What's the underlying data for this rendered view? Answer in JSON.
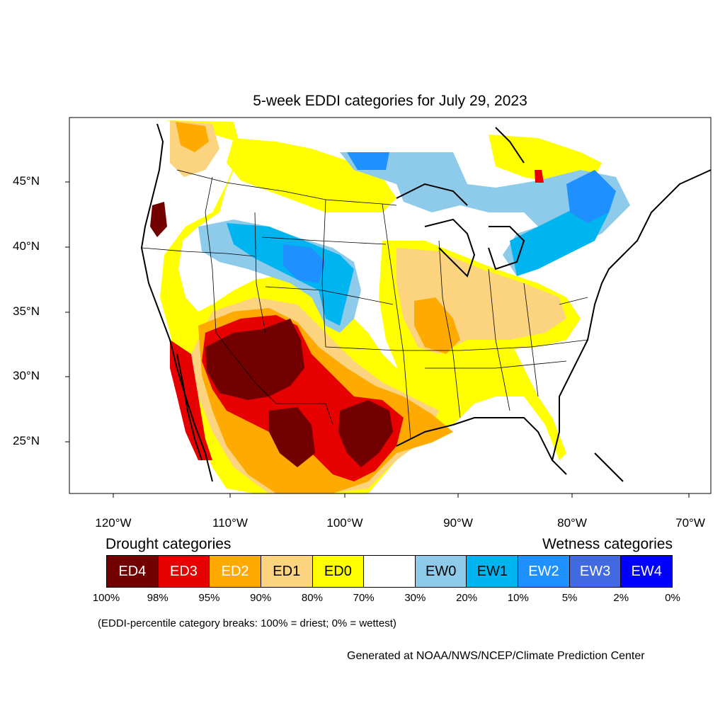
{
  "title": "5-week EDDI categories for July 29, 2023",
  "lat_ticks": [
    "45°N",
    "40°N",
    "35°N",
    "30°N",
    "25°N"
  ],
  "lon_ticks": [
    "120°W",
    "110°W",
    "100°W",
    "90°W",
    "80°W",
    "70°W"
  ],
  "legend": {
    "drought_heading": "Drought categories",
    "wetness_heading": "Wetness categories",
    "categories": [
      {
        "label": "ED4",
        "color": "#730000",
        "text_color": "#ffffff"
      },
      {
        "label": "ED3",
        "color": "#e60000",
        "text_color": "#ffffff"
      },
      {
        "label": "ED2",
        "color": "#ffaa00",
        "text_color": "#ffffff"
      },
      {
        "label": "ED1",
        "color": "#fcd37f",
        "text_color": "#000000"
      },
      {
        "label": "ED0",
        "color": "#ffff00",
        "text_color": "#000000"
      },
      {
        "label": "",
        "color": "#ffffff",
        "text_color": "#000000"
      },
      {
        "label": "EW0",
        "color": "#8ecbeb",
        "text_color": "#000000"
      },
      {
        "label": "EW1",
        "color": "#00b4f0",
        "text_color": "#000000"
      },
      {
        "label": "EW2",
        "color": "#1e90ff",
        "text_color": "#ffffff"
      },
      {
        "label": "EW3",
        "color": "#4169e1",
        "text_color": "#ffffff"
      },
      {
        "label": "EW4",
        "color": "#0000ff",
        "text_color": "#ffffff"
      }
    ],
    "breaks": [
      "100%",
      "98%",
      "95%",
      "90%",
      "80%",
      "70%",
      "30%",
      "20%",
      "10%",
      "5%",
      "2%",
      "0%"
    ]
  },
  "note": "(EDDI-percentile category breaks: 100% = driest; 0% = wettest)",
  "credit": "Generated at NOAA/NWS/NCEP/Climate Prediction Center"
}
